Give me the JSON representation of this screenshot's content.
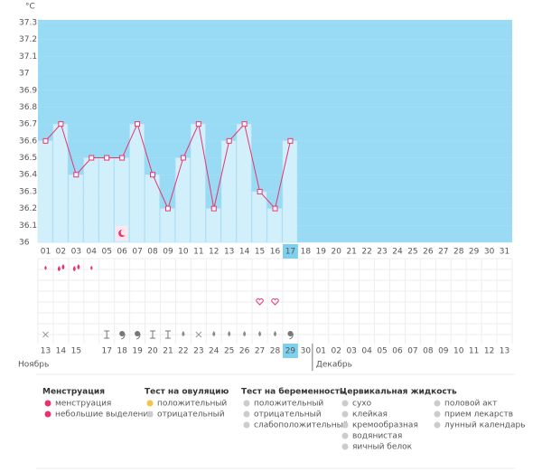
{
  "chart_data": {
    "type": "line",
    "unit": "°C",
    "categories": [
      "01",
      "02",
      "03",
      "04",
      "05",
      "06",
      "07",
      "08",
      "09",
      "10",
      "11",
      "12",
      "13",
      "14",
      "15",
      "16",
      "17",
      "18",
      "19",
      "20",
      "21",
      "22",
      "23",
      "24",
      "25",
      "26",
      "27",
      "28",
      "29",
      "30",
      "31"
    ],
    "values": [
      36.6,
      36.7,
      36.4,
      36.5,
      36.5,
      36.5,
      36.7,
      36.4,
      36.2,
      36.5,
      36.7,
      36.2,
      36.6,
      36.7,
      36.3,
      36.2,
      36.6,
      null,
      null,
      null,
      null,
      null,
      null,
      null,
      null,
      null,
      null,
      null,
      null,
      null,
      null
    ],
    "color": "#e8336e",
    "ylim": [
      36,
      37.3
    ],
    "yticks": [
      36,
      36.1,
      36.2,
      36.3,
      36.4,
      36.5,
      36.6,
      36.7,
      36.8,
      36.9,
      37,
      37.1,
      37.2,
      37.3
    ],
    "dates": [
      "13",
      "14",
      "15",
      null,
      "17",
      "18",
      "19",
      "20",
      "21",
      "22",
      "23",
      "24",
      "25",
      "26",
      "27",
      "28",
      "29",
      "30",
      "01",
      "02",
      "03",
      "04",
      "05",
      "06",
      "07",
      "08",
      "09",
      "10",
      "11",
      "12",
      "13"
    ],
    "months": [
      "Ноябрь",
      "Декабрь"
    ],
    "legend": [
      {
        "title": "Менструация",
        "items": [
          "менструация",
          "небольшие выделения"
        ]
      },
      {
        "title": "Тест на овуляцию",
        "items": [
          "положительный",
          "отрицательный"
        ]
      },
      {
        "title": "Тест на беременность",
        "items": [
          "положительный",
          "отрицательный",
          "слабоположительный"
        ]
      },
      {
        "title": "Цервикальная жидкость",
        "items": [
          "сухо",
          "клейкая",
          "кремообразная",
          "водянистая",
          "яичный белок"
        ]
      },
      {
        "items": [
          "половой акт",
          "прием лекарств",
          "лунный календарь"
        ]
      }
    ]
  }
}
